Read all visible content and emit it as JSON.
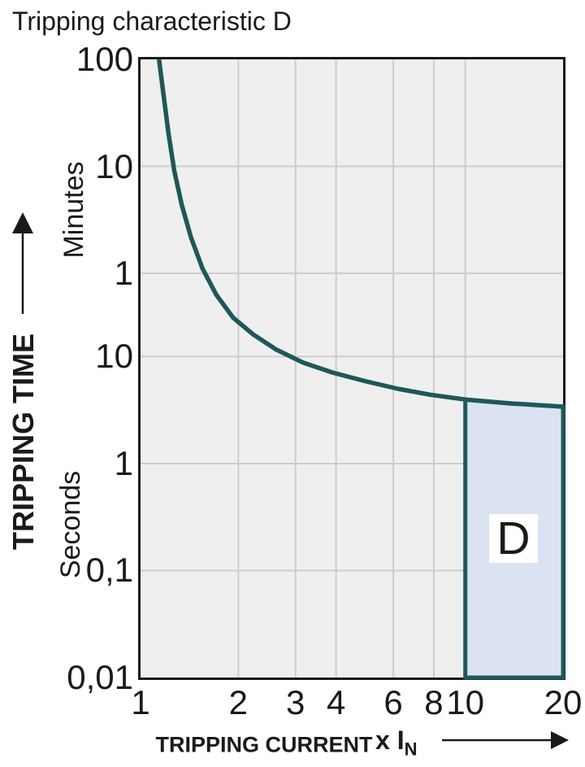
{
  "chart_data": {
    "type": "line",
    "title": "Tripping characteristic D",
    "xlabel": "TRIPPING CURRENT",
    "x_unit_prefix": "x I",
    "x_unit_sub": "N",
    "ylabel": "TRIPPING TIME",
    "y_units": [
      "Minutes",
      "Seconds"
    ],
    "x_scale": "log",
    "y_scale": "log",
    "xlim": [
      1,
      20
    ],
    "ylim_seconds": [
      0.01,
      6000
    ],
    "grid": {
      "x_values": [
        2,
        3,
        4,
        6,
        8,
        10
      ],
      "y_values_seconds": [
        600,
        60,
        10,
        1,
        0.1
      ]
    },
    "xticks": [
      {
        "v": 1,
        "label": "1"
      },
      {
        "v": 2,
        "label": "2"
      },
      {
        "v": 3,
        "label": "3"
      },
      {
        "v": 4,
        "label": "4"
      },
      {
        "v": 6,
        "label": "6"
      },
      {
        "v": 8,
        "label": "8"
      },
      {
        "v": 10,
        "label": "10"
      },
      {
        "v": 20,
        "label": "20"
      }
    ],
    "yticks": [
      {
        "t": 6000,
        "label": "100",
        "unit": "Minutes"
      },
      {
        "t": 600,
        "label": "10",
        "unit": "Minutes"
      },
      {
        "t": 60,
        "label": "1",
        "unit": "Minutes"
      },
      {
        "t": 10,
        "label": "10",
        "unit": "Seconds"
      },
      {
        "t": 1,
        "label": "1",
        "unit": "Seconds"
      },
      {
        "t": 0.1,
        "label": "0,1",
        "unit": "Seconds"
      },
      {
        "t": 0.01,
        "label": "0,01",
        "unit": "Seconds"
      }
    ],
    "series": [
      {
        "name": "Tripping characteristic D",
        "points_x_in_t_seconds": [
          [
            1.14,
            6000
          ],
          [
            1.18,
            2640
          ],
          [
            1.22,
            1200
          ],
          [
            1.27,
            545
          ],
          [
            1.34,
            260
          ],
          [
            1.43,
            130
          ],
          [
            1.55,
            67
          ],
          [
            1.71,
            38
          ],
          [
            1.93,
            23
          ],
          [
            2.23,
            16
          ],
          [
            2.62,
            11.6
          ],
          [
            3.16,
            8.8
          ],
          [
            3.9,
            7.1
          ],
          [
            4.9,
            5.9
          ],
          [
            6.2,
            5.0
          ],
          [
            7.8,
            4.4
          ],
          [
            10,
            3.97
          ],
          [
            13.9,
            3.64
          ],
          [
            20,
            3.4
          ]
        ]
      }
    ],
    "region": {
      "label": "D",
      "x_range": [
        10,
        20
      ],
      "t_bottom": 0.01,
      "top_follows_curve": true
    },
    "colors": {
      "curve": "#1e5858",
      "region_fill": "#dbe3f2",
      "plot_bg": "#efefef",
      "grid": "#cdcdcd",
      "frame": "#1a1a1a",
      "text": "#1a1a1a",
      "region_label_bg": "#ffffff"
    }
  }
}
